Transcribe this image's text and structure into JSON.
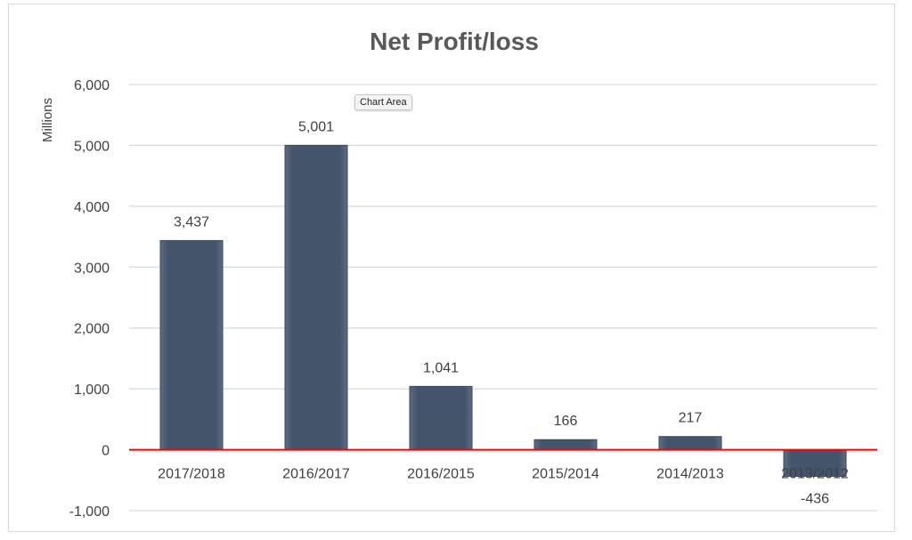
{
  "chart_data": {
    "type": "bar",
    "title": "Net Profit/loss",
    "xlabel": "",
    "ylabel": "Millions",
    "categories": [
      "2017/2018",
      "2016/2017",
      "2016/2015",
      "2015/2014",
      "2014/2013",
      "2013/2012"
    ],
    "values": [
      3437,
      5001,
      1041,
      166,
      217,
      -436
    ],
    "data_labels": [
      "3,437",
      "5,001",
      "1,041",
      "166",
      "217",
      "-436"
    ],
    "ylim": [
      -1000,
      6000
    ],
    "yticks": [
      -1000,
      0,
      1000,
      2000,
      3000,
      4000,
      5000,
      6000
    ],
    "ytick_labels": [
      "-1,000",
      "0",
      "1,000",
      "2,000",
      "3,000",
      "4,000",
      "5,000",
      "6,000"
    ],
    "grid": true,
    "bar_color": "#44546a",
    "zero_line_color": "#ff0000"
  },
  "tooltip": "Chart Area"
}
